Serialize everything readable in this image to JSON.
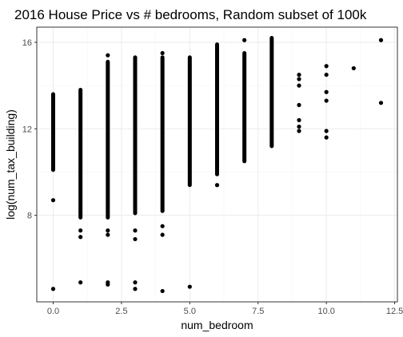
{
  "chart_data": {
    "type": "scatter",
    "title": "2016 House Price vs # bedrooms, Random subset of 100k",
    "xlabel": "num_bedroom",
    "ylabel": "log(num_tax_building)",
    "xlim": [
      -0.6,
      12.6
    ],
    "ylim": [
      4.0,
      16.7
    ],
    "grid": true,
    "legend": "none",
    "x_ticks": [
      0,
      2.5,
      5,
      7.5,
      10,
      12.5
    ],
    "x_tick_labels": [
      "0.0",
      "2.5",
      "5.0",
      "7.5",
      "10.0",
      "12.5"
    ],
    "y_ticks": [
      8,
      12,
      16
    ],
    "y_tick_labels": [
      "8",
      "12",
      "16"
    ],
    "point_color": "#000000",
    "panel_border_color": "#333333",
    "grid_major_color": "#ebebeb",
    "grid_minor_color": "#f5f5f5",
    "columns": [
      {
        "x": 0,
        "range": [
          10.1,
          13.6
        ],
        "outliers": [
          8.7,
          4.6
        ]
      },
      {
        "x": 1,
        "range": [
          7.9,
          13.8
        ],
        "outliers": [
          7.3,
          7.0,
          4.9
        ]
      },
      {
        "x": 2,
        "range": [
          7.9,
          15.1
        ],
        "outliers": [
          15.4,
          7.3,
          7.1,
          4.9,
          4.8
        ]
      },
      {
        "x": 3,
        "range": [
          8.1,
          15.3
        ],
        "outliers": [
          7.3,
          6.9,
          4.9,
          4.6
        ]
      },
      {
        "x": 4,
        "range": [
          8.2,
          15.3
        ],
        "outliers": [
          15.5,
          7.5,
          7.1,
          4.5
        ]
      },
      {
        "x": 5,
        "range": [
          9.4,
          15.3
        ],
        "outliers": [
          4.7
        ]
      },
      {
        "x": 6,
        "range": [
          9.9,
          15.9
        ],
        "outliers": [
          9.4
        ]
      },
      {
        "x": 7,
        "range": [
          10.5,
          15.5
        ],
        "outliers": [
          16.1
        ]
      },
      {
        "x": 8,
        "range": [
          11.2,
          16.2
        ],
        "outliers": []
      }
    ],
    "points": [
      {
        "x": 9,
        "y": 14.5
      },
      {
        "x": 9,
        "y": 14.3
      },
      {
        "x": 9,
        "y": 14.0
      },
      {
        "x": 9,
        "y": 13.1
      },
      {
        "x": 9,
        "y": 12.4
      },
      {
        "x": 9,
        "y": 12.1
      },
      {
        "x": 9,
        "y": 11.9
      },
      {
        "x": 10,
        "y": 14.9
      },
      {
        "x": 10,
        "y": 14.5
      },
      {
        "x": 10,
        "y": 13.7
      },
      {
        "x": 10,
        "y": 13.3
      },
      {
        "x": 10,
        "y": 11.9
      },
      {
        "x": 10,
        "y": 11.6
      },
      {
        "x": 11,
        "y": 14.8
      },
      {
        "x": 12,
        "y": 16.1
      },
      {
        "x": 12,
        "y": 13.2
      }
    ]
  }
}
